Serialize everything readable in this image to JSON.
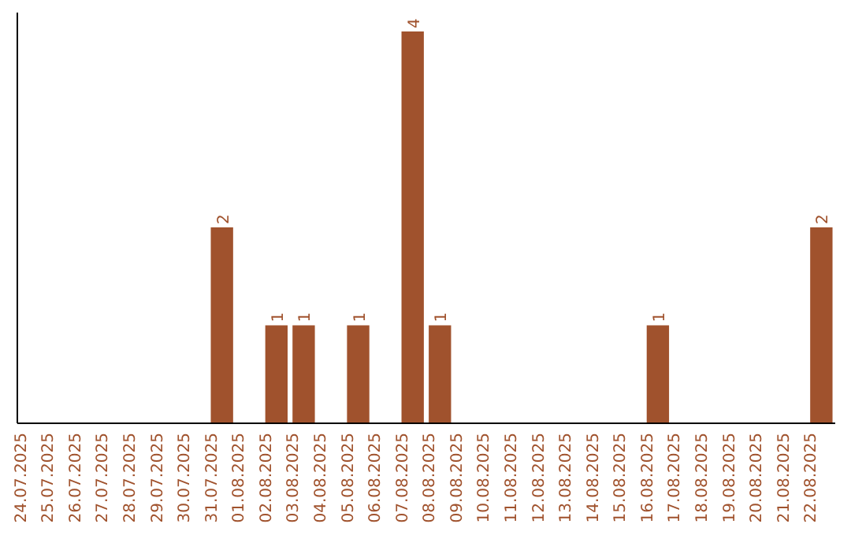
{
  "chart_data": {
    "type": "bar",
    "categories": [
      "24.07.2025",
      "25.07.2025",
      "26.07.2025",
      "27.07.2025",
      "28.07.2025",
      "29.07.2025",
      "30.07.2025",
      "31.07.2025",
      "01.08.2025",
      "02.08.2025",
      "03.08.2025",
      "04.08.2025",
      "05.08.2025",
      "06.08.2025",
      "07.08.2025",
      "08.08.2025",
      "09.08.2025",
      "10.08.2025",
      "11.08.2025",
      "12.08.2025",
      "13.08.2025",
      "14.08.2025",
      "15.08.2025",
      "16.08.2025",
      "17.08.2025",
      "18.08.2025",
      "19.08.2025",
      "20.08.2025",
      "21.08.2025",
      "22.08.2025"
    ],
    "values": [
      0,
      0,
      0,
      0,
      0,
      0,
      0,
      2,
      0,
      1,
      1,
      0,
      1,
      0,
      4,
      1,
      0,
      0,
      0,
      0,
      0,
      0,
      0,
      1,
      0,
      0,
      0,
      0,
      0,
      2
    ],
    "value_labels": [
      null,
      null,
      null,
      null,
      null,
      null,
      null,
      "2",
      null,
      "1",
      "1",
      null,
      "1",
      null,
      "4",
      "1",
      null,
      null,
      null,
      null,
      null,
      null,
      null,
      "1",
      null,
      null,
      null,
      null,
      null,
      "2"
    ],
    "color": "#a0522d"
  }
}
